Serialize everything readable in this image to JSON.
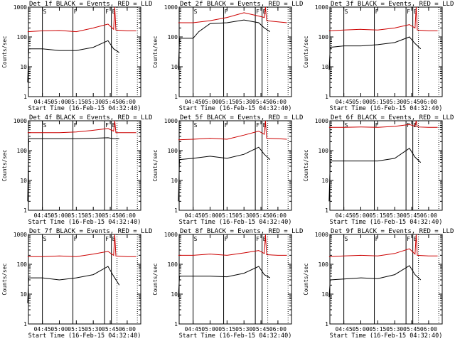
{
  "figure": {
    "colors": {
      "events": "#000000",
      "lld": "#cc0000",
      "axes": "#000000",
      "background": "#ffffff"
    }
  },
  "chart_data": [
    {
      "type": "line",
      "title": "Det 1f BLACK = Events, RED = LLD",
      "xlabel": "Start Time (16-Feb-15 04:32:40)",
      "ylabel": "Counts/sec",
      "yscale": "log",
      "ylim": [
        1,
        1000
      ],
      "xlim": [
        "04:32:40",
        "06:12:00"
      ],
      "x_ticks": [
        "04:45",
        "05:00",
        "05:15",
        "05:30",
        "05:45",
        "06:00"
      ],
      "y_ticks": [
        "1",
        "10",
        "100",
        "1000"
      ],
      "markers": [
        {
          "label": "S",
          "x": "04:45",
          "style": "solid"
        },
        {
          "label": "F",
          "x": "05:12",
          "style": "solid"
        },
        {
          "label": "F",
          "x": "05:40",
          "style": "solid"
        },
        {
          "label": "E",
          "x": "05:46",
          "style": "solid"
        },
        {
          "label": "",
          "x": "05:51",
          "style": "dotted"
        },
        {
          "label": "",
          "x": "06:09",
          "style": "dotted"
        }
      ],
      "series": [
        {
          "color": "#000000",
          "x": [
            "04:32",
            "04:33",
            "04:45",
            "05:00",
            "05:15",
            "05:30",
            "05:43",
            "05:48",
            "05:53"
          ],
          "values": [
            3,
            40,
            40,
            35,
            35,
            45,
            75,
            40,
            30
          ]
        },
        {
          "color": "#cc0000",
          "x": [
            "04:32",
            "04:45",
            "05:00",
            "05:15",
            "05:30",
            "05:43",
            "05:48",
            "05:49",
            "05:50",
            "06:00",
            "06:08"
          ],
          "values": [
            150,
            160,
            165,
            150,
            200,
            270,
            180,
            1000,
            170,
            160,
            160
          ]
        }
      ]
    },
    {
      "type": "line",
      "title": "Det 2f BLACK = Events, RED = LLD",
      "xlabel": "Start Time (16-Feb-15 04:32:40)",
      "ylabel": "Counts/sec",
      "yscale": "log",
      "ylim": [
        1,
        1000
      ],
      "xlim": [
        "04:32:40",
        "06:12:00"
      ],
      "x_ticks": [
        "04:45",
        "05:00",
        "05:15",
        "05:30",
        "05:45",
        "06:00"
      ],
      "y_ticks": [
        "1",
        "10",
        "100",
        "1000"
      ],
      "markers": [
        {
          "label": "S",
          "x": "04:45",
          "style": "solid"
        },
        {
          "label": "F",
          "x": "05:12",
          "style": "solid"
        },
        {
          "label": "F",
          "x": "05:40",
          "style": "solid"
        },
        {
          "label": "E",
          "x": "05:46",
          "style": "solid"
        },
        {
          "label": "",
          "x": "05:51",
          "style": "dotted"
        },
        {
          "label": "",
          "x": "06:09",
          "style": "dotted"
        }
      ],
      "series": [
        {
          "color": "#000000",
          "x": [
            "04:32",
            "04:33",
            "04:45",
            "04:50",
            "05:00",
            "05:15",
            "05:30",
            "05:43",
            "05:48",
            "05:53"
          ],
          "values": [
            8,
            90,
            90,
            150,
            280,
            300,
            370,
            300,
            200,
            150
          ]
        },
        {
          "color": "#cc0000",
          "x": [
            "04:32",
            "04:45",
            "05:00",
            "05:15",
            "05:30",
            "05:43",
            "05:48",
            "05:49",
            "05:50",
            "06:00",
            "06:08"
          ],
          "values": [
            300,
            300,
            350,
            450,
            650,
            500,
            450,
            1000,
            350,
            320,
            300
          ]
        }
      ]
    },
    {
      "type": "line",
      "title": "Det 3f BLACK = Events, RED = LLD",
      "xlabel": "Start Time (16-Feb-15 04:32:40)",
      "ylabel": "Counts/sec",
      "yscale": "log",
      "ylim": [
        1,
        1000
      ],
      "xlim": [
        "04:32:40",
        "06:12:00"
      ],
      "x_ticks": [
        "04:45",
        "05:00",
        "05:15",
        "05:30",
        "05:45",
        "06:00"
      ],
      "y_ticks": [
        "1",
        "10",
        "100",
        "1000"
      ],
      "markers": [
        {
          "label": "S",
          "x": "04:45",
          "style": "solid"
        },
        {
          "label": "F",
          "x": "05:12",
          "style": "solid"
        },
        {
          "label": "F",
          "x": "05:40",
          "style": "solid"
        },
        {
          "label": "E",
          "x": "05:46",
          "style": "solid"
        },
        {
          "label": "",
          "x": "05:51",
          "style": "dotted"
        },
        {
          "label": "",
          "x": "06:09",
          "style": "dotted"
        }
      ],
      "series": [
        {
          "color": "#000000",
          "x": [
            "04:32",
            "04:33",
            "04:45",
            "05:00",
            "05:15",
            "05:30",
            "05:43",
            "05:48",
            "05:53"
          ],
          "values": [
            8,
            45,
            50,
            50,
            55,
            65,
            100,
            60,
            40
          ]
        },
        {
          "color": "#cc0000",
          "x": [
            "04:32",
            "04:45",
            "05:00",
            "05:15",
            "05:30",
            "05:43",
            "05:48",
            "05:49",
            "05:50",
            "06:00",
            "06:08"
          ],
          "values": [
            160,
            170,
            180,
            170,
            200,
            260,
            200,
            1000,
            170,
            160,
            160
          ]
        }
      ]
    },
    {
      "type": "line",
      "title": "Det 4f BLACK = Events, RED = LLD",
      "xlabel": "Start Time (16-Feb-15 04:32:40)",
      "ylabel": "Counts/sec",
      "yscale": "log",
      "ylim": [
        1,
        1000
      ],
      "xlim": [
        "04:32:40",
        "06:12:00"
      ],
      "x_ticks": [
        "04:45",
        "05:00",
        "05:15",
        "05:30",
        "05:45",
        "06:00"
      ],
      "y_ticks": [
        "1",
        "10",
        "100",
        "1000"
      ],
      "markers": [
        {
          "label": "S",
          "x": "04:45",
          "style": "solid"
        },
        {
          "label": "F",
          "x": "05:12",
          "style": "solid"
        },
        {
          "label": "F",
          "x": "05:40",
          "style": "solid"
        },
        {
          "label": "E",
          "x": "05:46",
          "style": "solid"
        },
        {
          "label": "",
          "x": "05:51",
          "style": "dotted"
        },
        {
          "label": "",
          "x": "06:09",
          "style": "dotted"
        }
      ],
      "series": [
        {
          "color": "#000000",
          "x": [
            "04:32",
            "04:33",
            "04:45",
            "05:00",
            "05:15",
            "05:30",
            "05:43",
            "05:48",
            "05:53"
          ],
          "values": [
            2,
            250,
            250,
            250,
            250,
            260,
            270,
            250,
            250
          ]
        },
        {
          "color": "#cc0000",
          "x": [
            "04:32",
            "04:45",
            "05:00",
            "05:15",
            "05:30",
            "05:43",
            "05:48",
            "05:49",
            "05:50",
            "06:00",
            "06:08"
          ],
          "values": [
            400,
            400,
            400,
            420,
            480,
            550,
            450,
            1000,
            400,
            400,
            400
          ]
        }
      ]
    },
    {
      "type": "line",
      "title": "Det 5f BLACK = Events, RED = LLD",
      "xlabel": "Start Time (16-Feb-15 04:32:40)",
      "ylabel": "Counts/sec",
      "yscale": "log",
      "ylim": [
        1,
        1000
      ],
      "xlim": [
        "04:32:40",
        "06:12:00"
      ],
      "x_ticks": [
        "04:45",
        "05:00",
        "05:15",
        "05:30",
        "05:45",
        "06:00"
      ],
      "y_ticks": [
        "1",
        "10",
        "100",
        "1000"
      ],
      "markers": [
        {
          "label": "S",
          "x": "04:45",
          "style": "solid"
        },
        {
          "label": "F",
          "x": "05:12",
          "style": "solid"
        },
        {
          "label": "F",
          "x": "05:40",
          "style": "solid"
        },
        {
          "label": "E",
          "x": "05:46",
          "style": "solid"
        },
        {
          "label": "",
          "x": "05:51",
          "style": "dotted"
        },
        {
          "label": "",
          "x": "06:09",
          "style": "dotted"
        }
      ],
      "series": [
        {
          "color": "#000000",
          "x": [
            "04:32",
            "04:33",
            "04:45",
            "05:00",
            "05:15",
            "05:30",
            "05:43",
            "05:48",
            "05:53"
          ],
          "values": [
            2,
            50,
            55,
            65,
            55,
            75,
            130,
            75,
            50
          ]
        },
        {
          "color": "#cc0000",
          "x": [
            "04:32",
            "04:45",
            "05:00",
            "05:15",
            "05:30",
            "05:43",
            "05:48",
            "05:49",
            "05:50",
            "06:00",
            "06:08"
          ],
          "values": [
            230,
            240,
            260,
            240,
            330,
            450,
            350,
            1000,
            260,
            250,
            240
          ]
        }
      ]
    },
    {
      "type": "line",
      "title": "Det 6f BLACK = Events, RED = LLD",
      "xlabel": "Start Time (16-Feb-15 04:32:40)",
      "ylabel": "Counts/sec",
      "yscale": "log",
      "ylim": [
        1,
        1000
      ],
      "xlim": [
        "04:32:40",
        "06:12:00"
      ],
      "x_ticks": [
        "04:45",
        "05:00",
        "05:15",
        "05:30",
        "05:45",
        "06:00"
      ],
      "y_ticks": [
        "1",
        "10",
        "100",
        "1000"
      ],
      "markers": [
        {
          "label": "S",
          "x": "04:45",
          "style": "solid"
        },
        {
          "label": "F",
          "x": "05:12",
          "style": "solid"
        },
        {
          "label": "F",
          "x": "05:40",
          "style": "solid"
        },
        {
          "label": "E",
          "x": "05:46",
          "style": "solid"
        },
        {
          "label": "",
          "x": "05:51",
          "style": "dotted"
        },
        {
          "label": "",
          "x": "06:09",
          "style": "dotted"
        }
      ],
      "series": [
        {
          "color": "#000000",
          "x": [
            "04:32",
            "04:33",
            "04:45",
            "05:00",
            "05:15",
            "05:30",
            "05:43",
            "05:48",
            "05:53"
          ],
          "values": [
            2,
            45,
            45,
            45,
            45,
            55,
            120,
            60,
            40
          ]
        },
        {
          "color": "#cc0000",
          "x": [
            "04:32",
            "04:45",
            "05:00",
            "05:15",
            "05:30",
            "05:43",
            "05:48",
            "05:49",
            "05:50",
            "06:00",
            "06:08"
          ],
          "values": [
            600,
            600,
            620,
            600,
            650,
            750,
            650,
            1000,
            620,
            600,
            600
          ]
        }
      ]
    },
    {
      "type": "line",
      "title": "Det 7f BLACK = Events, RED = LLD",
      "xlabel": "Start Time (16-Feb-15 04:32:40)",
      "ylabel": "Counts/sec",
      "yscale": "log",
      "ylim": [
        1,
        1000
      ],
      "xlim": [
        "04:32:40",
        "06:12:00"
      ],
      "x_ticks": [
        "04:45",
        "05:00",
        "05:15",
        "05:30",
        "05:45",
        "06:00"
      ],
      "y_ticks": [
        "1",
        "10",
        "100",
        "1000"
      ],
      "markers": [
        {
          "label": "S",
          "x": "04:45",
          "style": "solid"
        },
        {
          "label": "F",
          "x": "05:12",
          "style": "solid"
        },
        {
          "label": "F",
          "x": "05:40",
          "style": "solid"
        },
        {
          "label": "E",
          "x": "05:46",
          "style": "solid"
        },
        {
          "label": "",
          "x": "05:51",
          "style": "dotted"
        },
        {
          "label": "",
          "x": "06:09",
          "style": "dotted"
        }
      ],
      "series": [
        {
          "color": "#000000",
          "x": [
            "04:32",
            "04:33",
            "04:45",
            "05:00",
            "05:15",
            "05:30",
            "05:43",
            "05:48",
            "05:53"
          ],
          "values": [
            5,
            35,
            35,
            30,
            35,
            45,
            85,
            40,
            20
          ]
        },
        {
          "color": "#cc0000",
          "x": [
            "04:32",
            "04:45",
            "05:00",
            "05:15",
            "05:30",
            "05:43",
            "05:48",
            "05:49",
            "05:50",
            "06:00",
            "06:08"
          ],
          "values": [
            180,
            180,
            190,
            180,
            220,
            270,
            200,
            1000,
            190,
            180,
            180
          ]
        }
      ]
    },
    {
      "type": "line",
      "title": "Det 8f BLACK = Events, RED = LLD",
      "xlabel": "Start Time (16-Feb-15 04:32:40)",
      "ylabel": "Counts/sec",
      "yscale": "log",
      "ylim": [
        1,
        1000
      ],
      "xlim": [
        "04:32:40",
        "06:12:00"
      ],
      "x_ticks": [
        "04:45",
        "05:00",
        "05:15",
        "05:30",
        "05:45",
        "06:00"
      ],
      "y_ticks": [
        "1",
        "10",
        "100",
        "1000"
      ],
      "markers": [
        {
          "label": "S",
          "x": "04:45",
          "style": "solid"
        },
        {
          "label": "F",
          "x": "05:12",
          "style": "solid"
        },
        {
          "label": "F",
          "x": "05:40",
          "style": "solid"
        },
        {
          "label": "E",
          "x": "05:46",
          "style": "solid"
        },
        {
          "label": "",
          "x": "05:51",
          "style": "dotted"
        },
        {
          "label": "",
          "x": "06:09",
          "style": "dotted"
        }
      ],
      "series": [
        {
          "color": "#000000",
          "x": [
            "04:32",
            "04:33",
            "04:45",
            "05:00",
            "05:15",
            "05:30",
            "05:43",
            "05:48",
            "05:53"
          ],
          "values": [
            8,
            40,
            40,
            40,
            38,
            50,
            85,
            45,
            35
          ]
        },
        {
          "color": "#cc0000",
          "x": [
            "04:32",
            "04:45",
            "05:00",
            "05:15",
            "05:30",
            "05:43",
            "05:48",
            "05:49",
            "05:50",
            "06:00",
            "06:08"
          ],
          "values": [
            200,
            200,
            220,
            200,
            240,
            290,
            230,
            1000,
            210,
            200,
            200
          ]
        }
      ]
    },
    {
      "type": "line",
      "title": "Det 9f BLACK = Events, RED = LLD",
      "xlabel": "Start Time (16-Feb-15 04:32:40)",
      "ylabel": "Counts/sec",
      "yscale": "log",
      "ylim": [
        1,
        1000
      ],
      "xlim": [
        "04:32:40",
        "06:12:00"
      ],
      "x_ticks": [
        "04:45",
        "05:00",
        "05:15",
        "05:30",
        "05:45",
        "06:00"
      ],
      "y_ticks": [
        "1",
        "10",
        "100",
        "1000"
      ],
      "markers": [
        {
          "label": "S",
          "x": "04:45",
          "style": "solid"
        },
        {
          "label": "F",
          "x": "05:12",
          "style": "solid"
        },
        {
          "label": "F",
          "x": "05:40",
          "style": "solid"
        },
        {
          "label": "E",
          "x": "05:46",
          "style": "solid"
        },
        {
          "label": "",
          "x": "05:51",
          "style": "dotted"
        },
        {
          "label": "",
          "x": "06:09",
          "style": "dotted"
        }
      ],
      "series": [
        {
          "color": "#000000",
          "x": [
            "04:32",
            "04:33",
            "04:45",
            "05:00",
            "05:15",
            "05:30",
            "05:43",
            "05:48",
            "05:53"
          ],
          "values": [
            8,
            30,
            32,
            35,
            33,
            45,
            90,
            45,
            30
          ]
        },
        {
          "color": "#cc0000",
          "x": [
            "04:32",
            "04:45",
            "05:00",
            "05:15",
            "05:30",
            "05:43",
            "05:48",
            "05:49",
            "05:50",
            "06:00",
            "06:08"
          ],
          "values": [
            180,
            190,
            200,
            190,
            230,
            330,
            220,
            1000,
            200,
            190,
            190
          ]
        }
      ]
    }
  ]
}
